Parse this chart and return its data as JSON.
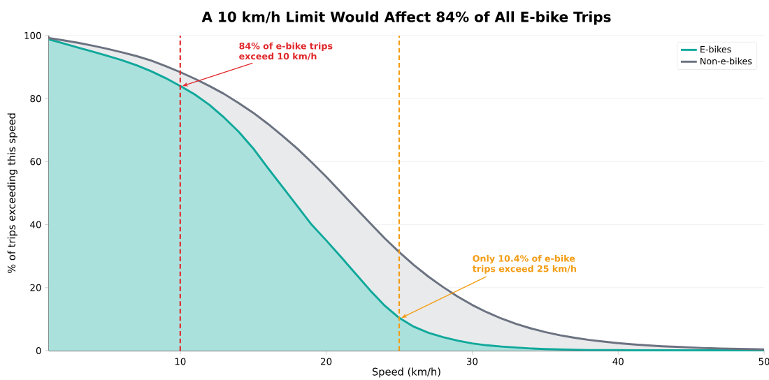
{
  "chart_data": {
    "type": "area",
    "title": "A 10 km/h Limit Would Affect 84% of All E-bike Trips",
    "xlabel": "Speed (km/h)",
    "ylabel": "% of trips exceeding this speed",
    "x": [
      1,
      2,
      3,
      4,
      5,
      6,
      7,
      8,
      9,
      10,
      11,
      12,
      13,
      14,
      15,
      16,
      17,
      18,
      19,
      20,
      21,
      22,
      23,
      24,
      25,
      26,
      27,
      28,
      29,
      30,
      31,
      32,
      33,
      34,
      35,
      36,
      37,
      38,
      39,
      40,
      41,
      42,
      43,
      44,
      45,
      46,
      47,
      48,
      49,
      50
    ],
    "series": [
      {
        "name": "E-bikes",
        "color": "#10a89b",
        "values": [
          98.8,
          97.5,
          96.2,
          94.9,
          93.6,
          92.2,
          90.6,
          88.7,
          86.5,
          84,
          81.3,
          78,
          74,
          69.5,
          64.2,
          58,
          52,
          46,
          40,
          35,
          29.8,
          24.5,
          19.2,
          14.3,
          10.4,
          7.6,
          5.7,
          4.3,
          3.2,
          2.3,
          1.7,
          1.3,
          1.0,
          0.7,
          0.5,
          0.4,
          0.3,
          0.2,
          0.2,
          0.2,
          0.1,
          0.1,
          0.1,
          0.1,
          0.1,
          0.1,
          0.1,
          0.1,
          0.1,
          0.1
        ]
      },
      {
        "name": "Non-e-bikes",
        "color": "#6b7280",
        "values": [
          99.2,
          98.5,
          97.7,
          96.8,
          95.8,
          94.7,
          93.5,
          92.1,
          90.3,
          88.4,
          86.3,
          84,
          81.5,
          78.6,
          75.5,
          72,
          68.2,
          64.2,
          59.8,
          55.2,
          50.3,
          45.4,
          40.5,
          35.7,
          31.3,
          27.2,
          23.5,
          20.2,
          17.2,
          14.5,
          12.2,
          10.2,
          8.5,
          7.1,
          5.9,
          4.9,
          4.1,
          3.4,
          2.9,
          2.4,
          2.0,
          1.7,
          1.4,
          1.2,
          1.0,
          0.8,
          0.7,
          0.6,
          0.5,
          0.4
        ]
      }
    ],
    "xlim": [
      1,
      50
    ],
    "ylim": [
      0,
      100
    ],
    "xticks": [
      10,
      20,
      30,
      40,
      50
    ],
    "yticks": [
      0,
      20,
      40,
      60,
      80,
      100
    ],
    "ref_lines": [
      {
        "axis": "x",
        "value": 10,
        "color": "#e0282b",
        "line_style": "dashed"
      },
      {
        "axis": "x",
        "value": 25,
        "color": "#f39c12",
        "line_style": "dashed"
      }
    ],
    "annotations": [
      {
        "text": "84% of e-bike trips exceed 10 km/h",
        "x": 10,
        "y": 84
      },
      {
        "text": "Only 10.4% of e-bike trips exceed 25 km/h",
        "x": 25,
        "y": 10.4
      }
    ],
    "grid": "y",
    "legend": "top right",
    "marker": "none",
    "line_style": "solid"
  }
}
